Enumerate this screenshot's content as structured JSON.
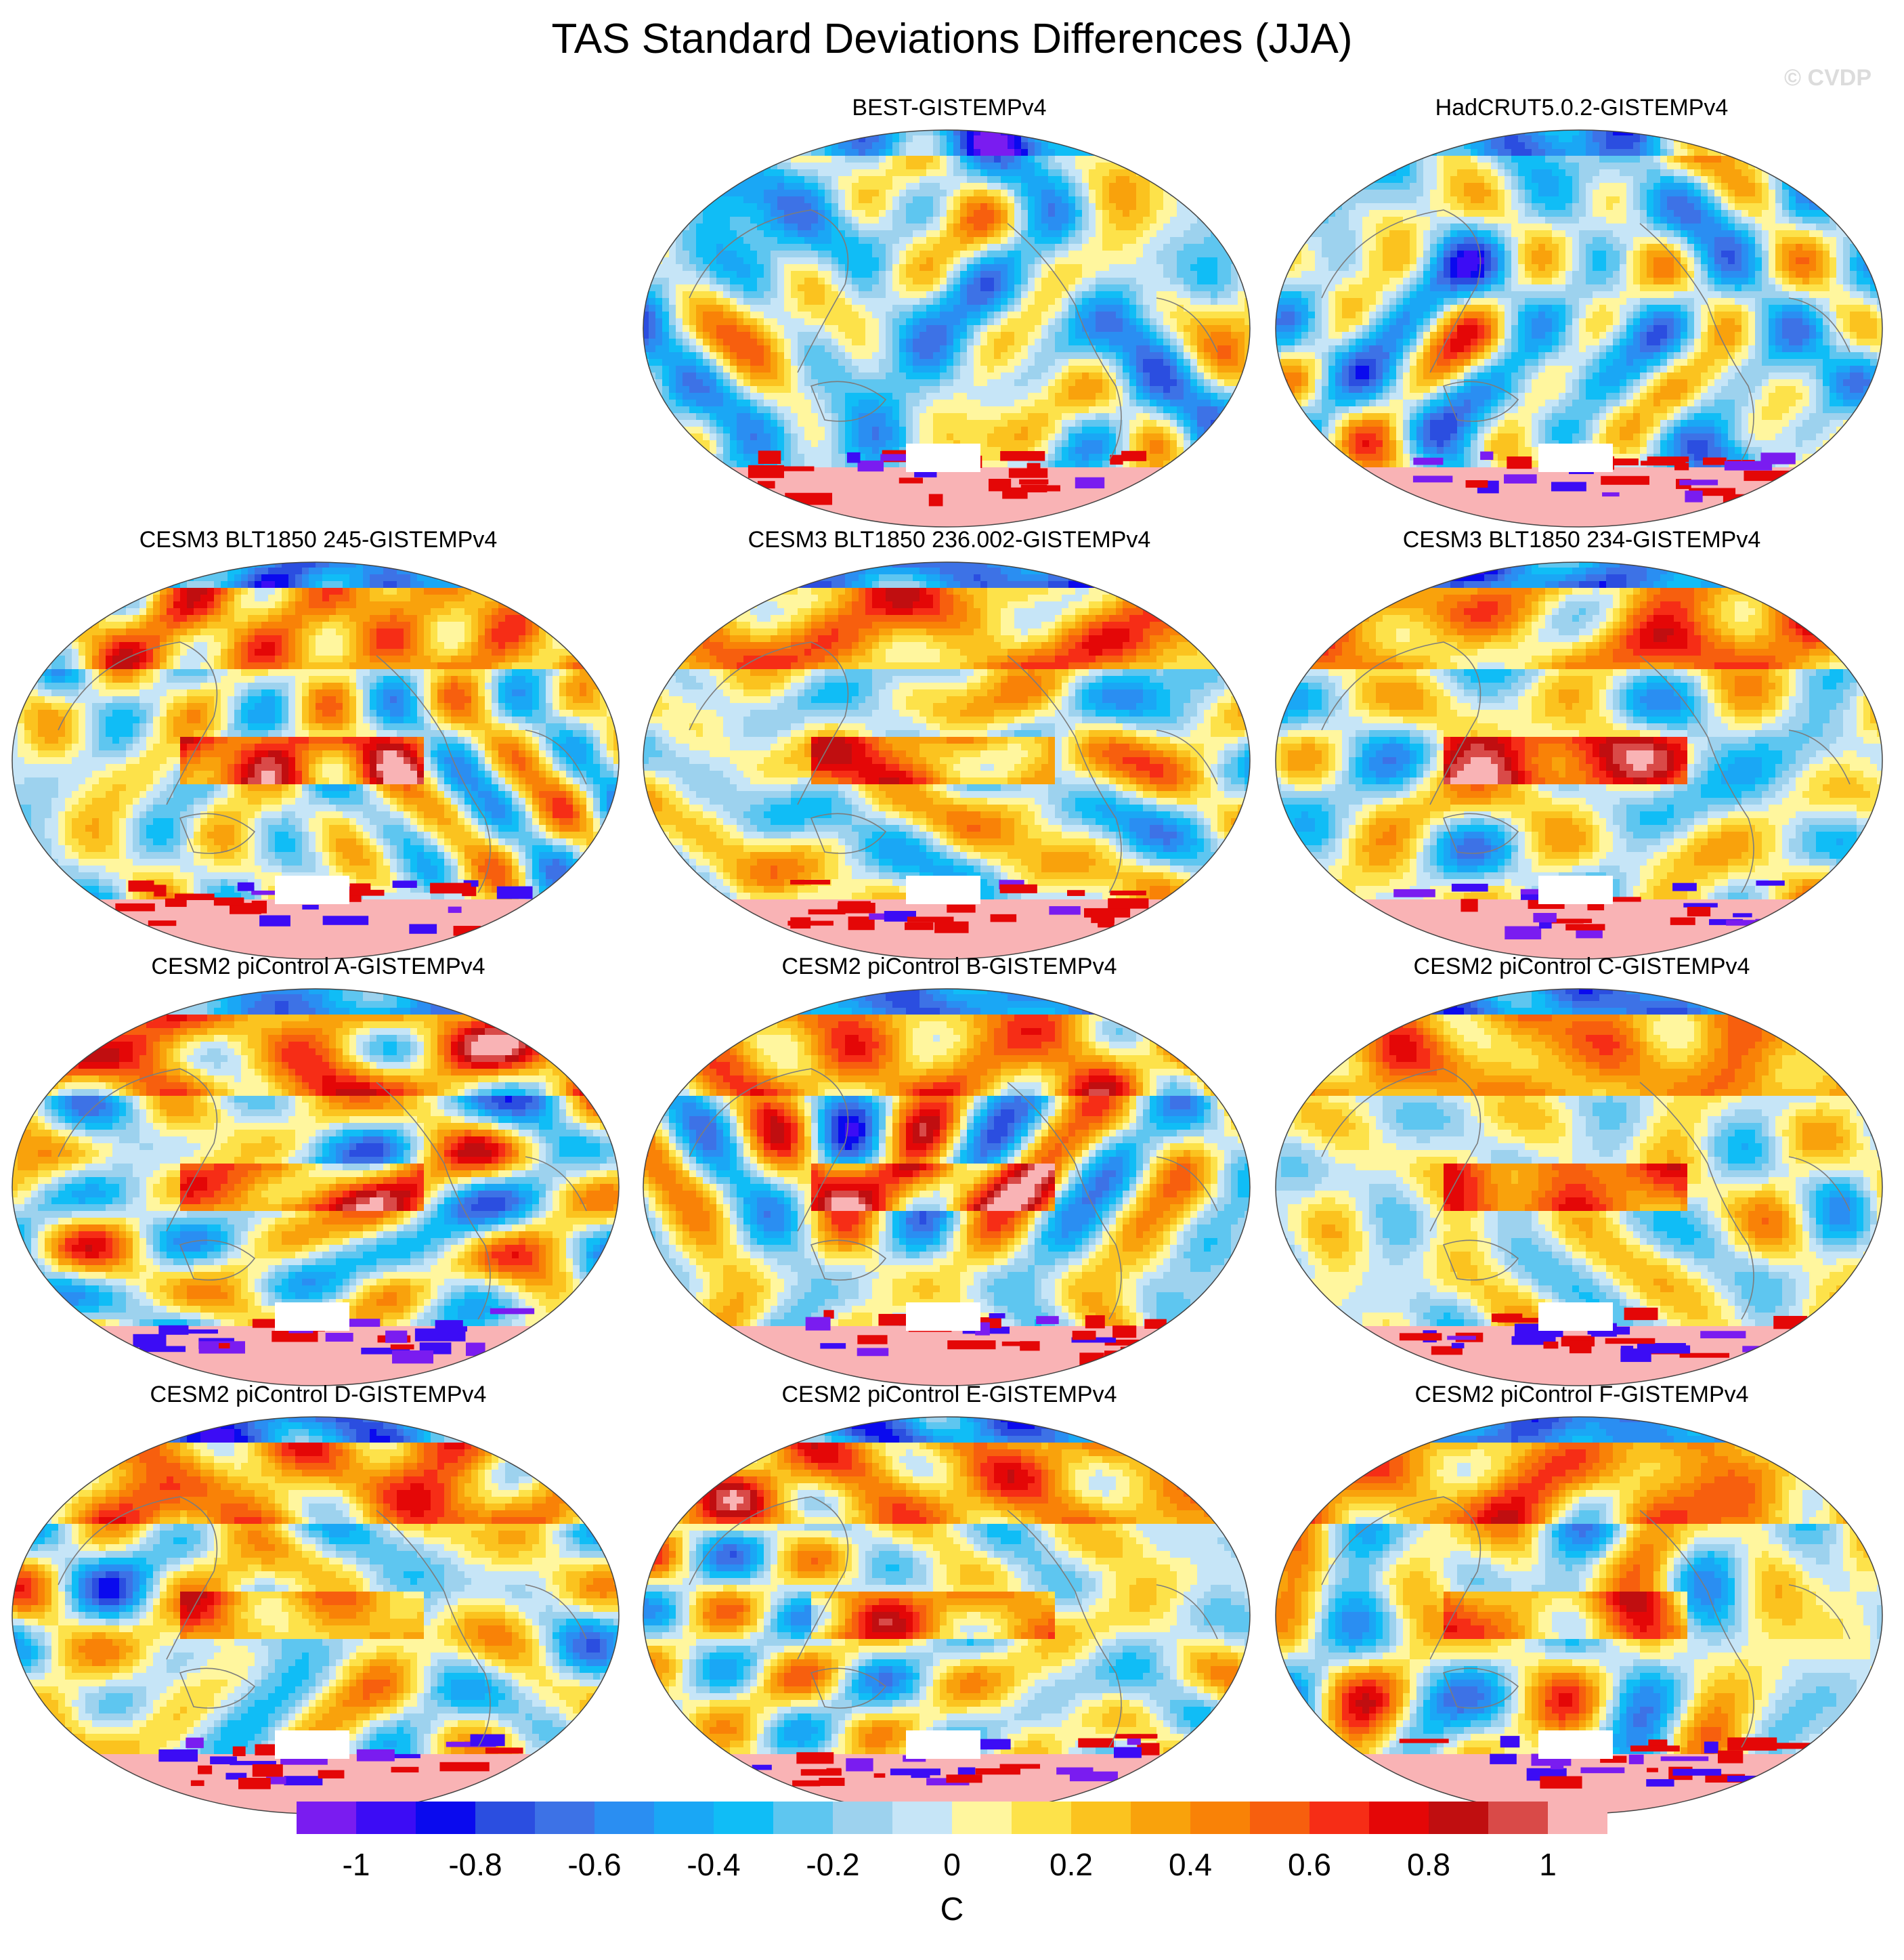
{
  "title": "TAS Standard Deviations Differences (JJA)",
  "watermark": "© CVDP",
  "panels": [
    {
      "label": "BEST-GISTEMPv4",
      "variant": "obs",
      "seed": 11
    },
    {
      "label": "HadCRUT5.0.2-GISTEMPv4",
      "variant": "obs",
      "seed": 23
    },
    {
      "label": "CESM3 BLT1850 245-GISTEMPv4",
      "variant": "model",
      "seed": 37
    },
    {
      "label": "CESM3 BLT1850 236.002-GISTEMPv4",
      "variant": "model",
      "seed": 41
    },
    {
      "label": "CESM3 BLT1850 234-GISTEMPv4",
      "variant": "model",
      "seed": 53
    },
    {
      "label": "CESM2 piControl A-GISTEMPv4",
      "variant": "model",
      "seed": 61
    },
    {
      "label": "CESM2 piControl B-GISTEMPv4",
      "variant": "model",
      "seed": 73
    },
    {
      "label": "CESM2 piControl C-GISTEMPv4",
      "variant": "model",
      "seed": 89
    },
    {
      "label": "CESM2 piControl D-GISTEMPv4",
      "variant": "model",
      "seed": 97
    },
    {
      "label": "CESM2 piControl E-GISTEMPv4",
      "variant": "model",
      "seed": 103
    },
    {
      "label": "CESM2 piControl F-GISTEMPv4",
      "variant": "model",
      "seed": 113
    }
  ],
  "colorbar": {
    "colors": [
      "#7a1cf0",
      "#3c0cf5",
      "#0a0aee",
      "#2b4ee0",
      "#3d72e6",
      "#2a8ef2",
      "#1aa7f5",
      "#10bdf6",
      "#5ec6f0",
      "#9dd2ee",
      "#c6e5f7",
      "#fff69e",
      "#fde24a",
      "#fbc31f",
      "#f9a20c",
      "#f98207",
      "#f75f0e",
      "#f62d16",
      "#e40707",
      "#c00e10",
      "#d94a48",
      "#f9b3b5"
    ],
    "ticks": [
      "-1",
      "-0.8",
      "-0.6",
      "-0.4",
      "-0.2",
      "0",
      "0.2",
      "0.4",
      "0.6",
      "0.8",
      "1"
    ],
    "unit": "C"
  }
}
